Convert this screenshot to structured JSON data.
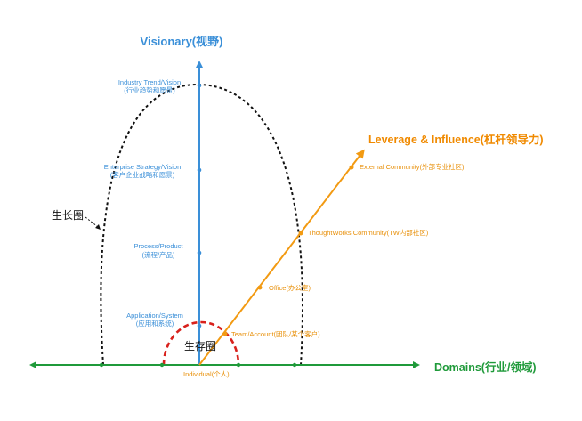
{
  "axes": {
    "vertical_title": "Visionary(视野)",
    "diagonal_title": "Leverage & Influence(杠杆领导力)",
    "horizontal_title": "Domains(行业/领域)"
  },
  "vertical_levels": [
    {
      "en": "Industry Trend/Vision",
      "zh": "(行业趋势和愿景)"
    },
    {
      "en": "Enterprise Strategy/Vision",
      "zh": "(客户企业战略和愿景)"
    },
    {
      "en": "Process/Product",
      "zh": "(流程/产品)"
    },
    {
      "en": "Application/System",
      "zh": "(应用和系统)"
    }
  ],
  "diagonal_levels": [
    {
      "label": "External Community(外部专业社区)"
    },
    {
      "label": "ThoughtWorks Community(TW内部社区)"
    },
    {
      "label": "Office(办公室)"
    },
    {
      "label": "Team/Account(团队/某个客户)"
    }
  ],
  "origin_label": "Individual(个人)",
  "growth_circle_label": "生长圈",
  "survival_circle_label": "生存圈",
  "colors": {
    "blue": "#3a8fd8",
    "orange": "#f29a12",
    "green": "#1f9a3a",
    "red": "#d8211c",
    "black": "#111111"
  }
}
